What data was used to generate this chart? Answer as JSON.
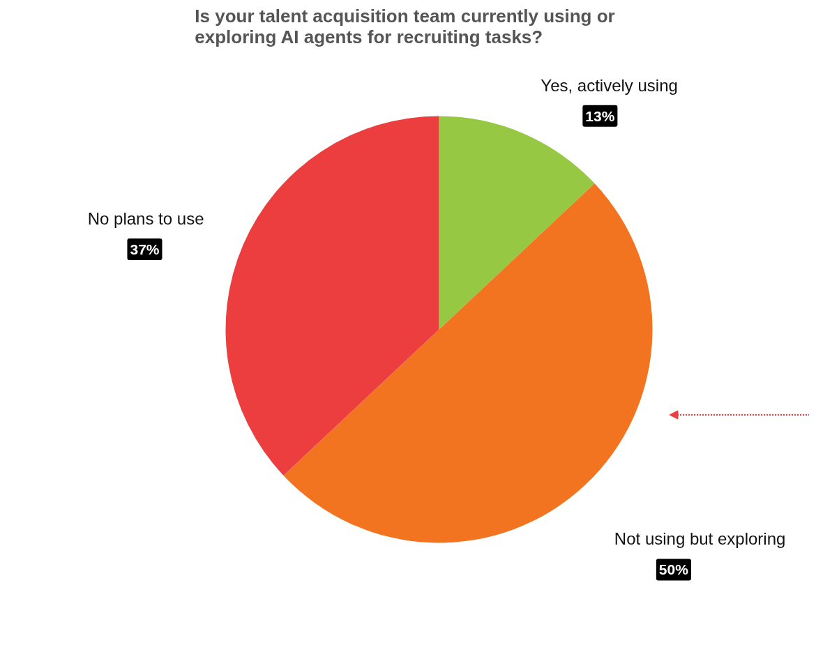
{
  "chart_data": {
    "type": "pie",
    "title": "Is your talent acquisition team currently using or exploring AI agents for recruiting tasks?",
    "categories": [
      "Yes, actively using",
      "Not using but exploring",
      "No plans to use"
    ],
    "values": [
      13,
      50,
      37
    ],
    "colors": [
      "#97c843",
      "#f27421",
      "#ec3e3e"
    ],
    "value_labels": [
      "13%",
      "50%",
      "37%"
    ]
  }
}
